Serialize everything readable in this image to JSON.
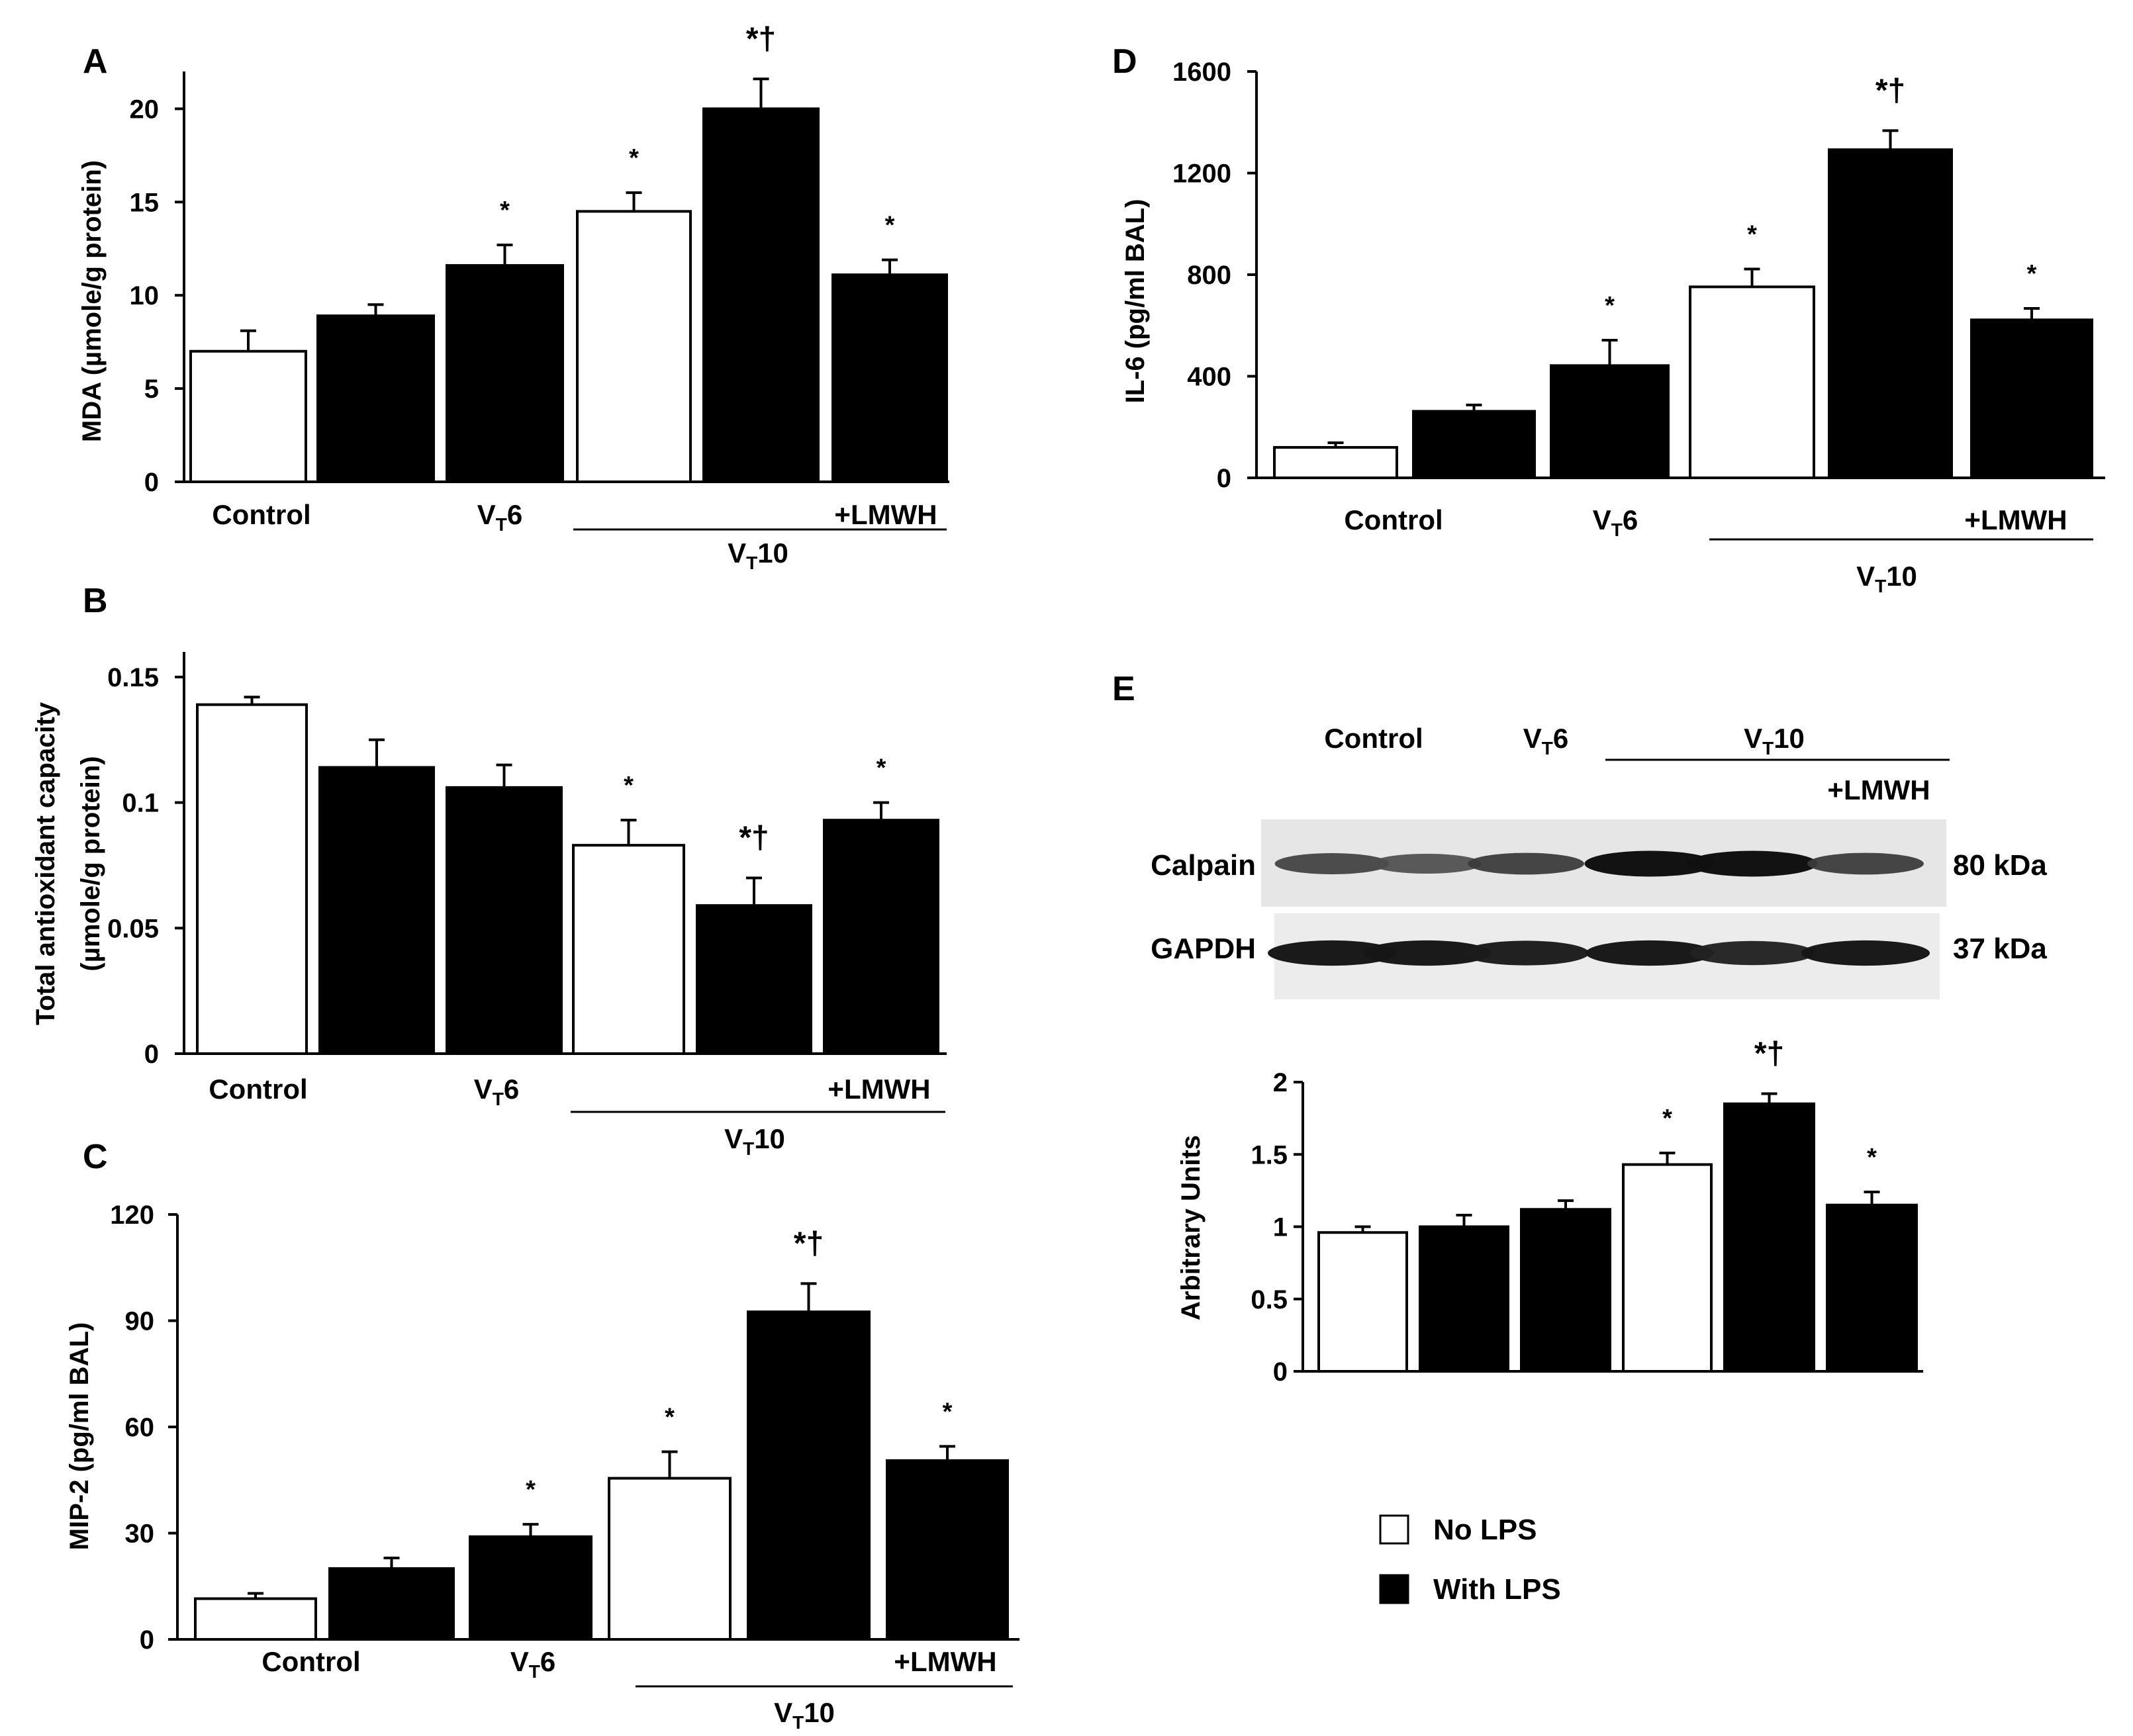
{
  "chart_data": [
    {
      "id": "A",
      "type": "bar",
      "panel": "A",
      "ylabel": "MDA (µmole/g protein)",
      "ylim": [
        0,
        22
      ],
      "yticks": [
        0,
        5,
        10,
        15,
        20
      ],
      "ytick_labels": [
        "0",
        "5",
        "10",
        "15",
        "20"
      ],
      "groups": [
        "Control",
        "Control",
        "VT6",
        "VT10",
        "VT10",
        "VT10 +LMWH"
      ],
      "lps": [
        "No LPS",
        "With LPS",
        "With LPS",
        "No LPS",
        "With LPS",
        "With LPS"
      ],
      "values": [
        7.0,
        8.9,
        11.6,
        14.5,
        20.0,
        11.1
      ],
      "errors": [
        1.1,
        0.6,
        1.1,
        1.0,
        1.6,
        0.8
      ],
      "annotations": [
        "",
        "",
        "*",
        "*",
        "*†",
        "*"
      ],
      "categories": {
        "control": "Control",
        "vt6_main": "V",
        "vt6_sub": "T",
        "vt6_tail": "6",
        "lmwh": "+LMWH",
        "vt10_main": "V",
        "vt10_sub": "T",
        "vt10_tail": "10"
      }
    },
    {
      "id": "B",
      "type": "bar",
      "panel": "B",
      "ylabel_line1": "Total antioxidant capacity",
      "ylabel_line2": "(µmole/g protein)",
      "ylim": [
        0,
        0.16
      ],
      "yticks": [
        0,
        0.05,
        0.1,
        0.15
      ],
      "ytick_labels": [
        "0",
        "0.05",
        "0.1",
        "0.15"
      ],
      "groups": [
        "Control",
        "Control",
        "VT6",
        "VT10",
        "VT10",
        "VT10 +LMWH"
      ],
      "lps": [
        "No LPS",
        "With LPS",
        "With LPS",
        "No LPS",
        "With LPS",
        "With LPS"
      ],
      "values": [
        0.139,
        0.114,
        0.106,
        0.083,
        0.059,
        0.093
      ],
      "errors": [
        0.003,
        0.011,
        0.009,
        0.01,
        0.011,
        0.007
      ],
      "annotations": [
        "",
        "",
        "",
        "*",
        "*†",
        "*"
      ],
      "categories": {
        "control": "Control",
        "vt6_main": "V",
        "vt6_sub": "T",
        "vt6_tail": "6",
        "lmwh": "+LMWH",
        "vt10_main": "V",
        "vt10_sub": "T",
        "vt10_tail": "10"
      }
    },
    {
      "id": "C",
      "type": "bar",
      "panel": "C",
      "ylabel": "MIP-2 (pg/ml BAL)",
      "ylim": [
        0,
        120
      ],
      "yticks": [
        0,
        30,
        60,
        90,
        120
      ],
      "ytick_labels": [
        "0",
        "30",
        "60",
        "90",
        "120"
      ],
      "groups": [
        "Control",
        "Control",
        "VT6",
        "VT10",
        "VT10",
        "VT10 +LMWH"
      ],
      "lps": [
        "No LPS",
        "With LPS",
        "With LPS",
        "No LPS",
        "With LPS",
        "With LPS"
      ],
      "values": [
        11.5,
        20.0,
        29.0,
        45.5,
        92.5,
        50.5
      ],
      "errors": [
        1.5,
        3.0,
        3.5,
        7.5,
        8.0,
        4.0
      ],
      "annotations": [
        "",
        "",
        "*",
        "*",
        "*†",
        "*"
      ],
      "categories": {
        "control": "Control",
        "vt6_main": "V",
        "vt6_sub": "T",
        "vt6_tail": "6",
        "lmwh": "+LMWH",
        "vt10_main": "V",
        "vt10_sub": "T",
        "vt10_tail": "10"
      }
    },
    {
      "id": "D",
      "type": "bar",
      "panel": "D",
      "ylabel": "IL-6 (pg/ml BAL)",
      "ylim": [
        0,
        1600
      ],
      "yticks": [
        0,
        400,
        800,
        1200,
        1600
      ],
      "ytick_labels": [
        "0",
        "400",
        "800",
        "1200",
        "1600"
      ],
      "groups": [
        "Control",
        "Control",
        "VT6",
        "VT10",
        "VT10",
        "VT10 +LMWH"
      ],
      "lps": [
        "No LPS",
        "With LPS",
        "With LPS",
        "No LPS",
        "With LPS",
        "With LPS"
      ],
      "values": [
        120,
        262,
        442,
        752,
        1292,
        622
      ],
      "errors": [
        18,
        25,
        100,
        70,
        75,
        45
      ],
      "annotations": [
        "",
        "",
        "*",
        "*",
        "*†",
        "*"
      ],
      "categories": {
        "control": "Control",
        "vt6_main": "V",
        "vt6_sub": "T",
        "vt6_tail": "6",
        "lmwh": "+LMWH",
        "vt10_main": "V",
        "vt10_sub": "T",
        "vt10_tail": "10"
      }
    },
    {
      "id": "E",
      "type": "bar",
      "panel": "E",
      "ylabel": "Arbitrary Units",
      "ylim": [
        0,
        2
      ],
      "yticks": [
        0,
        0.5,
        1,
        1.5,
        2
      ],
      "ytick_labels": [
        "0",
        "0.5",
        "1",
        "1.5",
        "2"
      ],
      "groups": [
        "Control",
        "Control",
        "VT6",
        "VT10",
        "VT10",
        "VT10 +LMWH"
      ],
      "lps": [
        "No LPS",
        "With LPS",
        "With LPS",
        "No LPS",
        "With LPS",
        "With LPS"
      ],
      "values": [
        0.96,
        1.0,
        1.12,
        1.43,
        1.85,
        1.15
      ],
      "errors": [
        0.04,
        0.08,
        0.06,
        0.08,
        0.07,
        0.09
      ],
      "annotations": [
        "",
        "",
        "",
        "*",
        "*†",
        "*"
      ]
    }
  ],
  "western_blot": {
    "panel": "E",
    "header": {
      "control": "Control",
      "vt6_main": "V",
      "vt6_sub": "T",
      "vt6_tail": "6",
      "vt10_main": "V",
      "vt10_sub": "T",
      "vt10_tail": "10",
      "lmwh": "+LMWH"
    },
    "rows": [
      {
        "label": "Calpain",
        "size": "80 kDa",
        "intensity": [
          0.55,
          0.45,
          0.6,
          0.95,
          0.95,
          0.6
        ]
      },
      {
        "label": "GAPDH",
        "size": "37 kDa",
        "intensity": [
          0.9,
          0.9,
          0.85,
          0.9,
          0.8,
          0.9
        ]
      }
    ]
  },
  "legend": {
    "items": [
      {
        "label": "No LPS",
        "fill": "#ffffff"
      },
      {
        "label": "With LPS",
        "fill": "#000000"
      }
    ]
  },
  "colors": {
    "with_lps": "#000000",
    "no_lps": "#ffffff",
    "axis": "#000000",
    "blot_bg": "#e6e6e6"
  }
}
